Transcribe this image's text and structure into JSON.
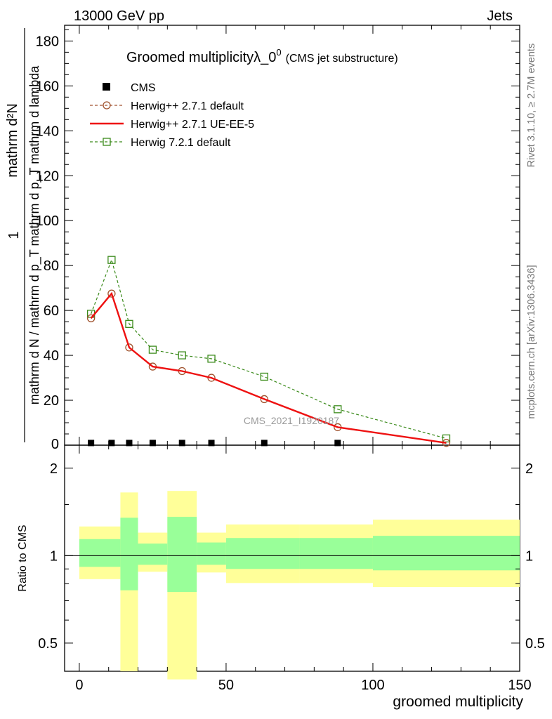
{
  "header": {
    "left": "13000 GeV pp",
    "right": "Jets"
  },
  "side_labels": {
    "rivet": "Rivet 3.1.10, ≥ 2.7M events",
    "mcplots": "mcplots.cern.ch [arXiv:1306.3436]"
  },
  "watermark": "CMS_2021_I1920187",
  "chart_data": [
    {
      "type": "line",
      "title": "Groomed multiplicityλ_0",
      "title_sup": "0",
      "subtitle": "(CMS jet substructure)",
      "ylabel_frac_num": "1",
      "ylabel_frac_den": "mathrm d N / mathrm d p_T mathrm d p_T mathrm d lambda",
      "ylabel_num": "mathrm d²N",
      "xlim": [
        -5,
        150
      ],
      "ylim": [
        0,
        187
      ],
      "xticks": [
        0,
        50,
        100,
        150
      ],
      "yticks": [
        20,
        40,
        60,
        80,
        100,
        120,
        140,
        160,
        180
      ],
      "ytick_labels": [
        "20",
        "40",
        "60",
        "80",
        "100",
        "120",
        "140",
        "160",
        "180"
      ],
      "ytick_zero": "0",
      "legend_position": "top-left",
      "series": [
        {
          "name": "CMS",
          "style": "markers-square",
          "color": "#000000",
          "x": [
            4,
            11,
            17,
            25,
            35,
            45,
            63,
            88
          ],
          "y": [
            0.5,
            0.5,
            0.5,
            0.5,
            0.5,
            0.5,
            0.5,
            0.5
          ]
        },
        {
          "name": "Herwig++ 2.7.1 default",
          "style": "dashed-circle",
          "color": "#a0522d",
          "x": [
            4,
            11,
            17,
            25,
            35,
            45,
            63,
            88,
            125
          ],
          "y": [
            56.5,
            67.5,
            43.5,
            35.0,
            33.0,
            30.0,
            20.5,
            8.0,
            1.0
          ]
        },
        {
          "name": "Herwig++ 2.7.1 UE-EE-5",
          "style": "solid",
          "color": "#ee1111",
          "x": [
            4,
            11,
            17,
            25,
            35,
            45,
            63,
            88,
            125
          ],
          "y": [
            56.5,
            67.5,
            43.5,
            35.0,
            33.0,
            30.0,
            20.5,
            8.0,
            1.0
          ]
        },
        {
          "name": "Herwig 7.2.1 default",
          "style": "dashed-square",
          "color": "#3a8a1a",
          "x": [
            4,
            11,
            17,
            25,
            35,
            45,
            63,
            88,
            125
          ],
          "y": [
            58.5,
            82.5,
            54.0,
            42.5,
            40.0,
            38.5,
            30.5,
            16.0,
            3.0
          ]
        }
      ]
    },
    {
      "type": "area",
      "ylabel": "Ratio to CMS",
      "xlabel": "groomed multiplicity",
      "xlim": [
        -5,
        150
      ],
      "ylim": [
        0.4,
        2.4
      ],
      "log_y": true,
      "xticks": [
        0,
        50,
        100,
        150
      ],
      "xtick_labels": [
        "0",
        "50",
        "100",
        "150"
      ],
      "yticks": [
        0.5,
        1,
        2
      ],
      "ytick_labels": [
        "0.5",
        "1",
        "2"
      ],
      "reference_line": 1,
      "bands": {
        "outer_color": "#ffff99",
        "inner_color": "#99ff99",
        "bins": [
          {
            "lo": 0,
            "hi": 14,
            "outer": [
              0.83,
              1.26
            ],
            "inner": [
              0.915,
              1.14
            ]
          },
          {
            "lo": 14,
            "hi": 20,
            "outer": [
              0.4,
              1.65
            ],
            "inner": [
              0.76,
              1.35
            ]
          },
          {
            "lo": 20,
            "hi": 30,
            "outer": [
              0.88,
              1.2
            ],
            "inner": [
              0.93,
              1.1
            ]
          },
          {
            "lo": 30,
            "hi": 40,
            "outer": [
              0.375,
              1.67
            ],
            "inner": [
              0.75,
              1.36
            ]
          },
          {
            "lo": 40,
            "hi": 50,
            "outer": [
              0.875,
              1.2
            ],
            "inner": [
              0.93,
              1.11
            ]
          },
          {
            "lo": 50,
            "hi": 75,
            "outer": [
              0.805,
              1.28
            ],
            "inner": [
              0.9,
              1.15
            ]
          },
          {
            "lo": 75,
            "hi": 100,
            "outer": [
              0.805,
              1.28
            ],
            "inner": [
              0.9,
              1.15
            ]
          },
          {
            "lo": 100,
            "hi": 150,
            "outer": [
              0.78,
              1.33
            ],
            "inner": [
              0.89,
              1.17
            ]
          }
        ]
      }
    }
  ]
}
